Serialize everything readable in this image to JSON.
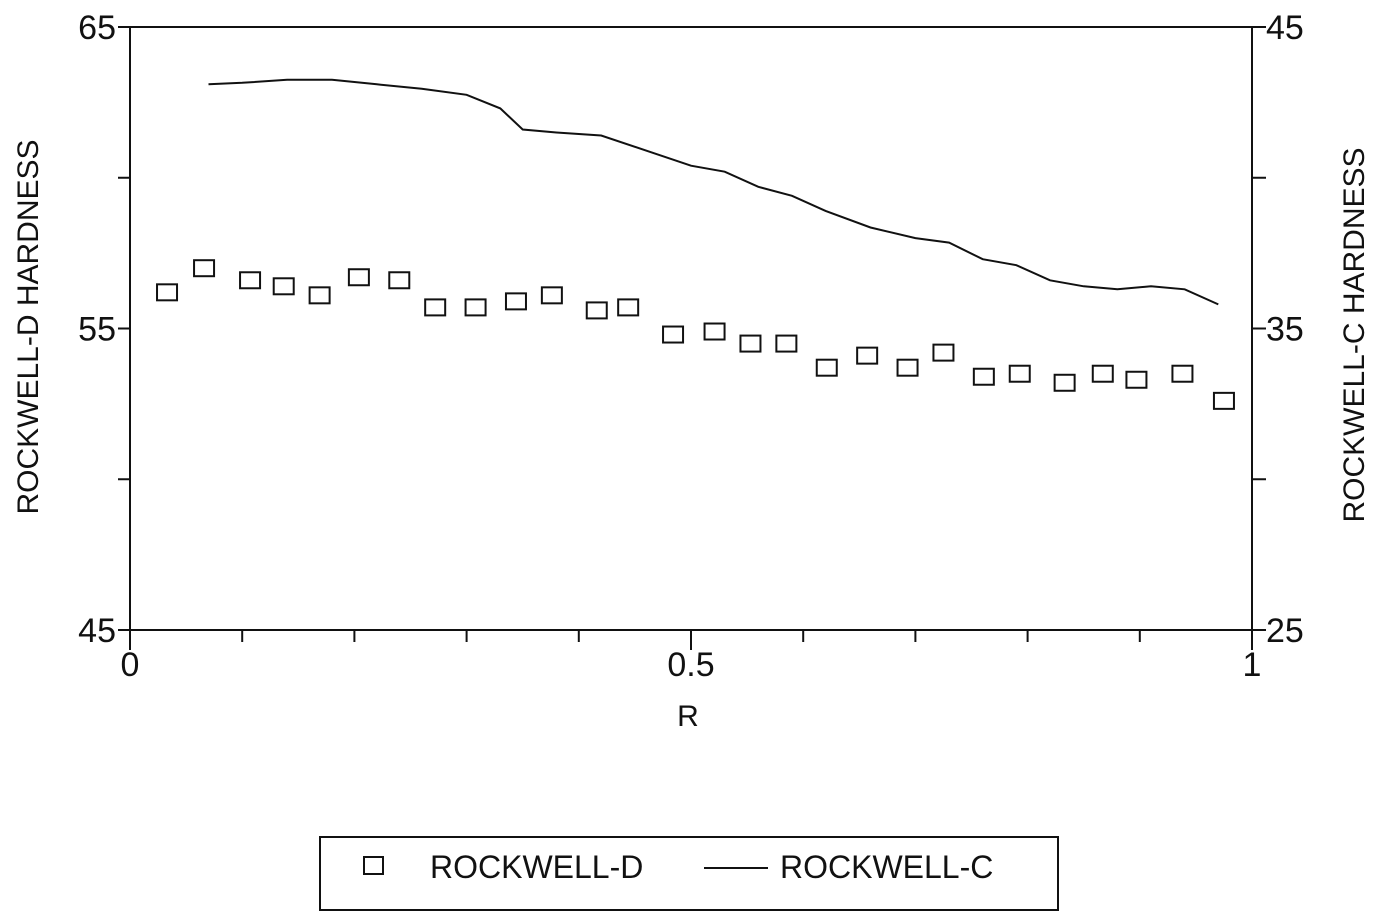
{
  "chart_data": {
    "type": "scatter+line",
    "xlabel": "R",
    "ylabel_left": "ROCKWELL-D HARDNESS",
    "ylabel_right": "ROCKWELL-C HARDNESS",
    "xlim": [
      0,
      1
    ],
    "ylim_left": [
      45,
      65
    ],
    "ylim_right": [
      25,
      45
    ],
    "x_ticks": [
      {
        "value": 0,
        "label": "0"
      },
      {
        "value": 0.5,
        "label": "0.5"
      },
      {
        "value": 1,
        "label": "1"
      }
    ],
    "y_ticks_left": [
      {
        "value": 45,
        "label": "45"
      },
      {
        "value": 55,
        "label": "55"
      },
      {
        "value": 65,
        "label": "65"
      }
    ],
    "y_ticks_right": [
      {
        "value": 25,
        "label": "25"
      },
      {
        "value": 35,
        "label": "35"
      },
      {
        "value": 45,
        "label": "45"
      }
    ],
    "legend_position": "bottom",
    "series": [
      {
        "name": "ROCKWELL-D",
        "marker": "open-square",
        "axis": "left",
        "x": [
          0.033,
          0.066,
          0.107,
          0.137,
          0.169,
          0.204,
          0.24,
          0.272,
          0.308,
          0.344,
          0.376,
          0.416,
          0.444,
          0.484,
          0.521,
          0.553,
          0.585,
          0.621,
          0.657,
          0.693,
          0.725,
          0.761,
          0.793,
          0.833,
          0.867,
          0.897,
          0.938,
          0.975
        ],
        "y": [
          56.2,
          57.0,
          56.6,
          56.4,
          56.1,
          56.7,
          56.6,
          55.7,
          55.7,
          55.9,
          56.1,
          55.6,
          55.7,
          54.8,
          54.9,
          54.5,
          54.5,
          53.7,
          54.1,
          53.7,
          54.2,
          53.4,
          53.5,
          53.2,
          53.5,
          53.3,
          53.5,
          52.6
        ]
      },
      {
        "name": "ROCKWELL-C",
        "style": "line",
        "axis": "right",
        "x": [
          0.07,
          0.1,
          0.14,
          0.18,
          0.22,
          0.26,
          0.3,
          0.33,
          0.35,
          0.38,
          0.42,
          0.46,
          0.5,
          0.53,
          0.56,
          0.59,
          0.62,
          0.66,
          0.7,
          0.73,
          0.76,
          0.79,
          0.82,
          0.85,
          0.88,
          0.91,
          0.94,
          0.97
        ],
        "y": [
          43.1,
          43.15,
          43.25,
          43.25,
          43.1,
          42.95,
          42.75,
          42.3,
          41.6,
          41.5,
          41.4,
          40.9,
          40.4,
          40.2,
          39.7,
          39.4,
          38.9,
          38.35,
          38.0,
          37.85,
          37.3,
          37.1,
          36.6,
          36.4,
          36.3,
          36.4,
          36.3,
          35.8
        ]
      }
    ]
  }
}
